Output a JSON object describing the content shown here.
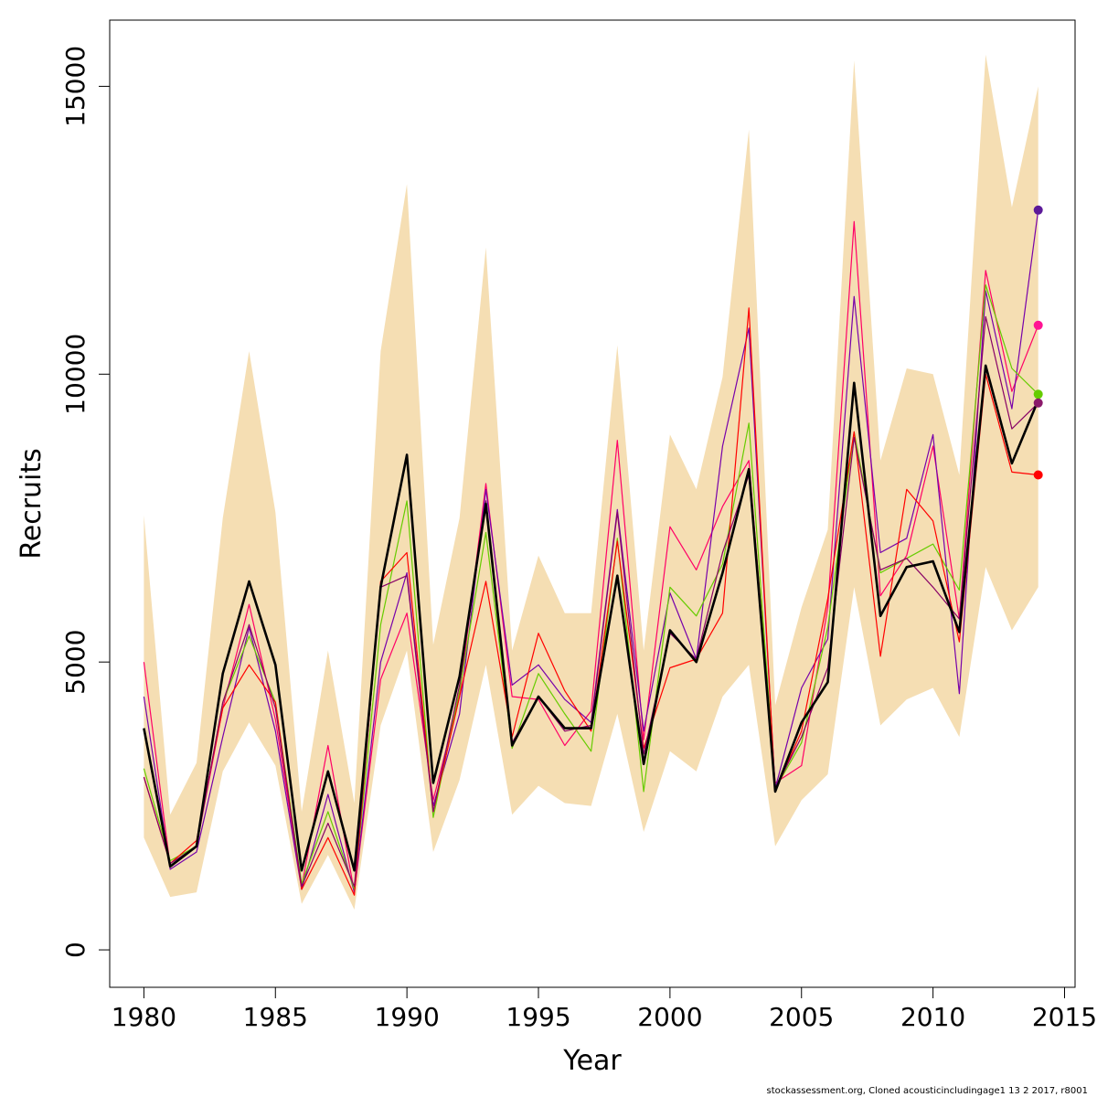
{
  "chart_data": {
    "type": "line",
    "title": "",
    "xlabel": "Year",
    "ylabel": "Recruits",
    "xlim": [
      1978.7,
      2015.4
    ],
    "ylim": [
      -650,
      16150
    ],
    "x_ticks": [
      1980,
      1985,
      1990,
      1995,
      2000,
      2005,
      2010,
      2015
    ],
    "y_ticks": [
      0,
      5000,
      10000,
      15000
    ],
    "x_tick_labels": [
      "1980",
      "1985",
      "1990",
      "1995",
      "2000",
      "2005",
      "2010",
      "2015"
    ],
    "y_tick_labels": [
      "0",
      "5000",
      "10000",
      "15000"
    ],
    "grid": false,
    "footnote": "stockassessment.org, Cloned  acousticincludingage1  13  2  2017, r8001",
    "band": {
      "color": "#F5DEB3",
      "x": [
        1980,
        1981,
        1982,
        1983,
        1984,
        1985,
        1986,
        1987,
        1988,
        1989,
        1990,
        1991,
        1992,
        1993,
        1994,
        1995,
        1996,
        1997,
        1998,
        1999,
        2000,
        2001,
        2002,
        2003,
        2004,
        2005,
        2006,
        2007,
        2008,
        2009,
        2010,
        2011,
        2012,
        2013,
        2014
      ],
      "lower": [
        1950,
        920,
        1000,
        3100,
        3950,
        3200,
        800,
        1650,
        700,
        3900,
        5200,
        1700,
        2950,
        4950,
        2350,
        2850,
        2550,
        2500,
        4100,
        2050,
        3450,
        3100,
        4400,
        4950,
        1800,
        2600,
        3050,
        6300,
        3900,
        4350,
        4550,
        3700,
        6650,
        5550,
        6300
      ],
      "upper": [
        7550,
        2350,
        3250,
        7500,
        10400,
        7600,
        2400,
        5200,
        2550,
        10400,
        13300,
        5300,
        7500,
        12200,
        5200,
        6850,
        5850,
        5850,
        10500,
        5200,
        8950,
        8000,
        9950,
        14250,
        4250,
        5950,
        7300,
        15450,
        8500,
        10100,
        10000,
        8250,
        15550,
        12900,
        15000
      ]
    },
    "series": [
      {
        "color": "#000000",
        "width": 2.6,
        "values": [
          3850,
          1450,
          1800,
          4800,
          6400,
          4950,
          1380,
          3100,
          1380,
          6300,
          8600,
          2900,
          4750,
          7750,
          3550,
          4400,
          3850,
          3850,
          6500,
          3230,
          5550,
          5000,
          6550,
          8350,
          2750,
          3950,
          4650,
          9850,
          5800,
          6650,
          6750,
          5520,
          10150,
          8450,
          9550
        ]
      },
      {
        "color": "#ff0066",
        "width": 1.2,
        "values": [
          5000,
          1450,
          1800,
          4200,
          6000,
          4000,
          1100,
          3550,
          1000,
          4700,
          5850,
          2600,
          4400,
          8100,
          4400,
          4350,
          3550,
          4150,
          8850,
          3650,
          7350,
          6600,
          7700,
          8500,
          2900,
          3200,
          5950,
          12650,
          6150,
          6850,
          8750,
          5750,
          11800,
          9700,
          10850
        ]
      },
      {
        "color": "#7700aa",
        "width": 1.2,
        "values": [
          4400,
          1400,
          1700,
          3700,
          5600,
          3800,
          1050,
          2700,
          1000,
          5000,
          6550,
          2500,
          4100,
          8000,
          4600,
          4950,
          4350,
          3950,
          7650,
          3800,
          6200,
          5050,
          8750,
          10800,
          2800,
          4550,
          5400,
          11350,
          6900,
          7150,
          8950,
          4450,
          11450,
          9400,
          12850
        ]
      },
      {
        "color": "#66cc00",
        "width": 1.2,
        "values": [
          3150,
          1550,
          1800,
          4300,
          5450,
          4300,
          1150,
          2400,
          1050,
          5650,
          7800,
          2300,
          4500,
          7250,
          3500,
          4800,
          4100,
          3450,
          7150,
          2750,
          6300,
          5800,
          6700,
          9150,
          2800,
          3600,
          5600,
          9000,
          6550,
          6800,
          7050,
          6250,
          11550,
          10100,
          9650
        ]
      },
      {
        "color": "#ff0000",
        "width": 1.2,
        "values": [
          3000,
          1500,
          1900,
          4200,
          4950,
          4300,
          1050,
          1950,
          950,
          6400,
          6900,
          2400,
          4400,
          6400,
          3700,
          5500,
          4500,
          3800,
          7100,
          3500,
          4900,
          5050,
          5850,
          11150,
          2750,
          3800,
          6100,
          9000,
          5100,
          8000,
          7450,
          5350,
          10000,
          8300,
          8250
        ]
      },
      {
        "color": "#880066",
        "width": 1.2,
        "values": [
          3000,
          1500,
          1800,
          4300,
          5650,
          4200,
          1100,
          2200,
          1100,
          6300,
          6500,
          2400,
          4600,
          7800,
          3600,
          4400,
          3800,
          3900,
          7600,
          3400,
          5500,
          5050,
          6900,
          8250,
          2800,
          3700,
          4900,
          8900,
          6600,
          6800,
          6300,
          5750,
          11000,
          9050,
          9500
        ]
      }
    ],
    "end_points": [
      {
        "value": 12850,
        "color": "#5c1a99"
      },
      {
        "value": 10850,
        "color": "#ff1493"
      },
      {
        "value": 9650,
        "color": "#66cc00"
      },
      {
        "value": 9500,
        "color": "#8b1a6b"
      },
      {
        "value": 8250,
        "color": "#ff0000"
      }
    ]
  }
}
